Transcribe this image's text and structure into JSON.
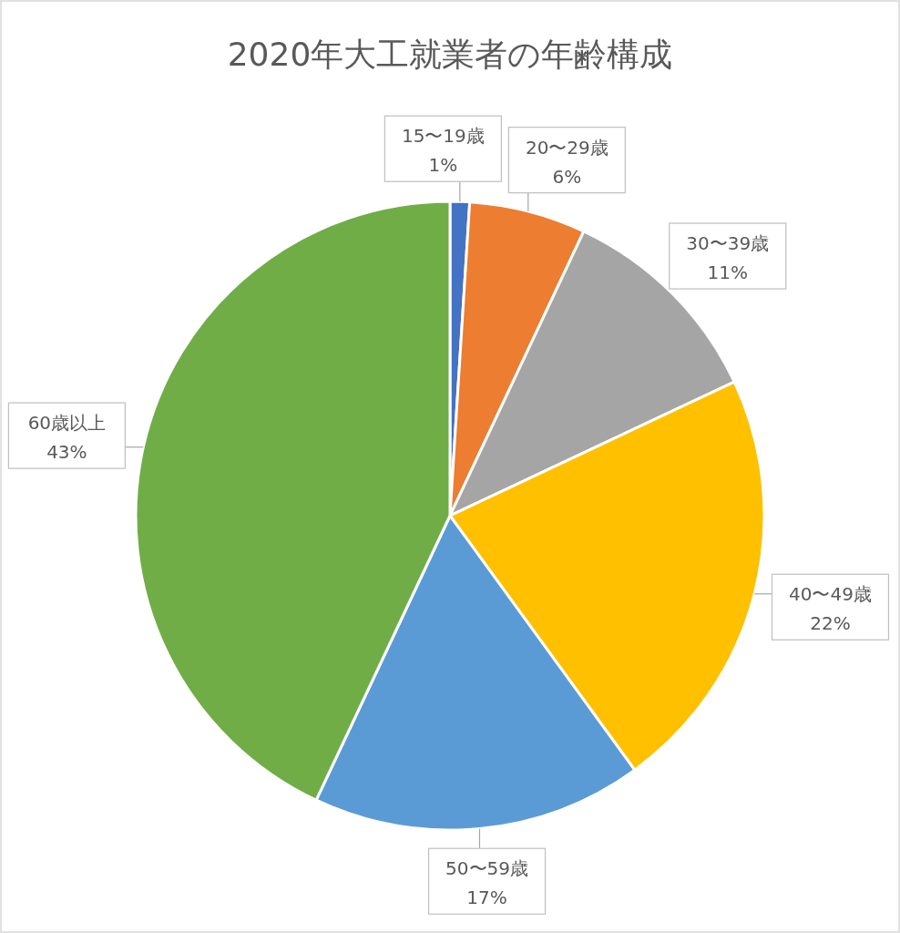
{
  "chart_data": {
    "type": "pie",
    "title": "2020年大工就業者の年齢構成",
    "categories": [
      "15〜19歳",
      "20〜29歳",
      "30〜39歳",
      "40〜49歳",
      "50〜59歳",
      "60歳以上"
    ],
    "values": [
      1,
      6,
      11,
      22,
      17,
      43
    ],
    "colors": [
      "#4472c4",
      "#ed7d31",
      "#a5a5a5",
      "#ffc000",
      "#5b9bd5",
      "#70ad47"
    ],
    "value_labels": [
      "1%",
      "6%",
      "11%",
      "22%",
      "17%",
      "43%"
    ],
    "legend": false
  }
}
